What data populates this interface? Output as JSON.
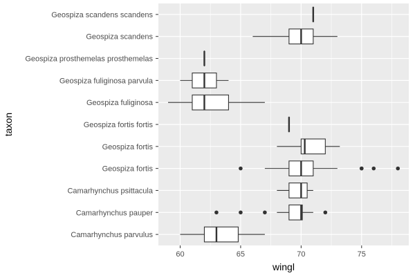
{
  "chart_data": {
    "type": "boxplot",
    "orientation": "horizontal",
    "xlabel": "wingl",
    "ylabel": "taxon",
    "xlim": [
      58.2,
      78.9
    ],
    "x_ticks": [
      60,
      65,
      70,
      75
    ],
    "x_minor_ticks": [
      62.5,
      67.5,
      72.5,
      77.5
    ],
    "grid": true,
    "legend": "none",
    "colors": {
      "panel_background": "#ebebeb",
      "grid_line": "#ffffff",
      "box_fill": "#ffffff",
      "box_stroke": "#333333",
      "outlier": "#333333",
      "tick_label": "#4d4d4d",
      "axis_title": "#000000"
    },
    "categories": [
      "Camarhynchus parvulus",
      "Camarhynchus pauper",
      "Camarhynchus psittacula",
      "Geospiza fortis",
      "Geospiza fortis ",
      "Geospiza fortis fortis",
      "Geospiza fuliginosa",
      "Geospiza fuliginosa parvula",
      "Geospiza prosthemelas prosthemelas",
      "Geospiza scandens",
      "Geospiza scandens scandens"
    ],
    "boxes": [
      {
        "taxon": "Camarhynchus parvulus",
        "whisker_low": 60,
        "q1": 62,
        "median": 63,
        "q3": 64.8,
        "whisker_high": 67,
        "outliers": []
      },
      {
        "taxon": "Camarhynchus pauper",
        "whisker_low": 68,
        "q1": 69,
        "median": 70,
        "q3": 70.1,
        "whisker_high": 71,
        "outliers": [
          63,
          65,
          67,
          72
        ]
      },
      {
        "taxon": "Camarhynchus psittacula",
        "whisker_low": 68,
        "q1": 69,
        "median": 70,
        "q3": 70.5,
        "whisker_high": 71,
        "outliers": []
      },
      {
        "taxon": "Geospiza fortis",
        "whisker_low": 67,
        "q1": 69,
        "median": 70,
        "q3": 71,
        "whisker_high": 73,
        "outliers": [
          65,
          75,
          75,
          76,
          78
        ]
      },
      {
        "taxon": "Geospiza fortis ",
        "whisker_low": 68,
        "q1": 70,
        "median": 70.3,
        "q3": 72,
        "whisker_high": 73.2,
        "outliers": []
      },
      {
        "taxon": "Geospiza fortis fortis",
        "whisker_low": 69,
        "q1": 69,
        "median": 69,
        "q3": 69,
        "whisker_high": 69,
        "outliers": []
      },
      {
        "taxon": "Geospiza fuliginosa",
        "whisker_low": 59,
        "q1": 61,
        "median": 62,
        "q3": 64,
        "whisker_high": 67,
        "outliers": []
      },
      {
        "taxon": "Geospiza fuliginosa parvula",
        "whisker_low": 60,
        "q1": 61,
        "median": 62,
        "q3": 63,
        "whisker_high": 64,
        "outliers": []
      },
      {
        "taxon": "Geospiza prosthemelas prosthemelas",
        "whisker_low": 62,
        "q1": 62,
        "median": 62,
        "q3": 62,
        "whisker_high": 62,
        "outliers": []
      },
      {
        "taxon": "Geospiza scandens",
        "whisker_low": 66,
        "q1": 69,
        "median": 70,
        "q3": 71,
        "whisker_high": 73,
        "outliers": []
      },
      {
        "taxon": "Geospiza scandens scandens",
        "whisker_low": 71,
        "q1": 71,
        "median": 71,
        "q3": 71,
        "whisker_high": 71,
        "outliers": []
      }
    ]
  }
}
